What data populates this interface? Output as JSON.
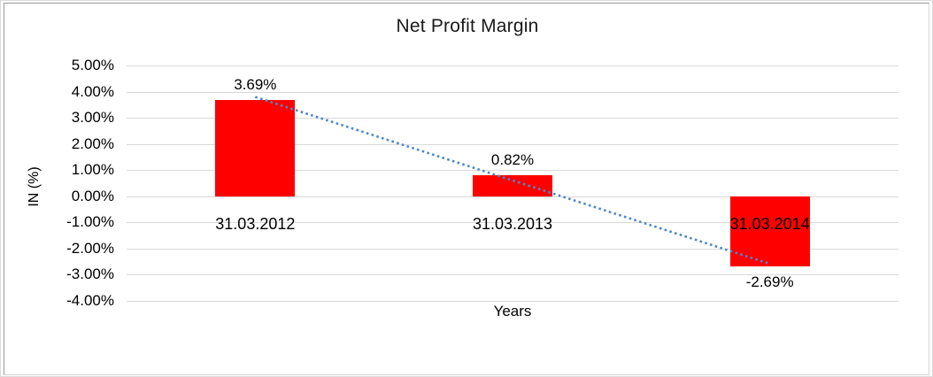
{
  "chart_data": {
    "type": "bar",
    "title": "Net Profit Margin",
    "xlabel": "Years",
    "ylabel": "IN (%)",
    "categories": [
      "31.03.2012",
      "31.03.2013",
      "31.03.2014"
    ],
    "series": [
      {
        "name": "Net Profit Margin",
        "values": [
          3.69,
          0.82,
          -2.69
        ]
      }
    ],
    "data_labels": [
      "3.69%",
      "0.82%",
      "-2.69%"
    ],
    "ylim": [
      -4,
      5
    ],
    "ytick_step": 1,
    "ytick_suffix": "%",
    "ytick_decimals": 2,
    "grid": "horizontal",
    "legend": "none",
    "bar_color": "#ff0000",
    "gridline_color": "#d9d9d9",
    "text_color": "#000000",
    "trendline": {
      "type": "linear",
      "style": "dotted",
      "color": "#4e87c7"
    }
  }
}
